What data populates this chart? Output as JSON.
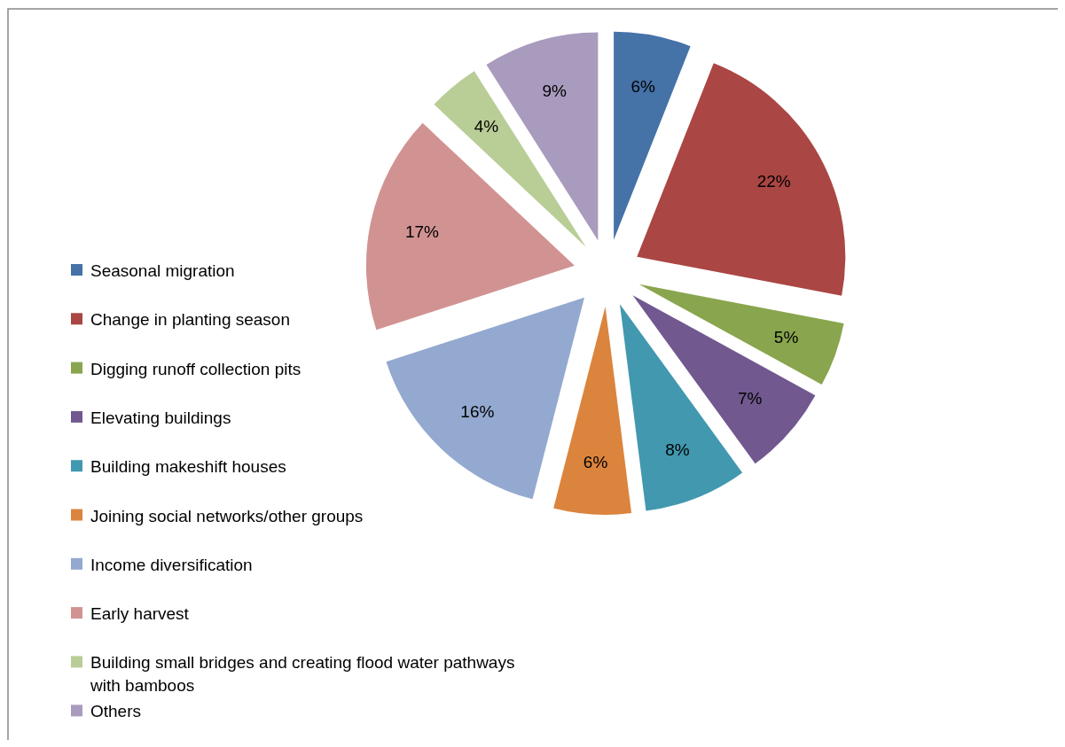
{
  "chart_data": {
    "type": "pie",
    "categories": [
      "Seasonal migration",
      "Change in planting season",
      "Digging runoff collection pits",
      "Elevating buildings",
      "Building makeshift houses",
      "Joining social networks/other groups",
      "Income diversification",
      "Early harvest",
      "Building small bridges and creating flood water pathways with bamboos",
      "Others"
    ],
    "values": [
      6,
      22,
      5,
      7,
      8,
      6,
      16,
      17,
      4,
      9
    ],
    "value_labels": [
      "6%",
      "22%",
      "5%",
      "7%",
      "8%",
      "6%",
      "16%",
      "17%",
      "4%",
      "9%"
    ],
    "colors": [
      "#4572a7",
      "#aa4643",
      "#89a54e",
      "#71588f",
      "#4198af",
      "#db843d",
      "#93a9cf",
      "#d19392",
      "#b9cd96",
      "#a99bbd"
    ],
    "legend": "left"
  }
}
